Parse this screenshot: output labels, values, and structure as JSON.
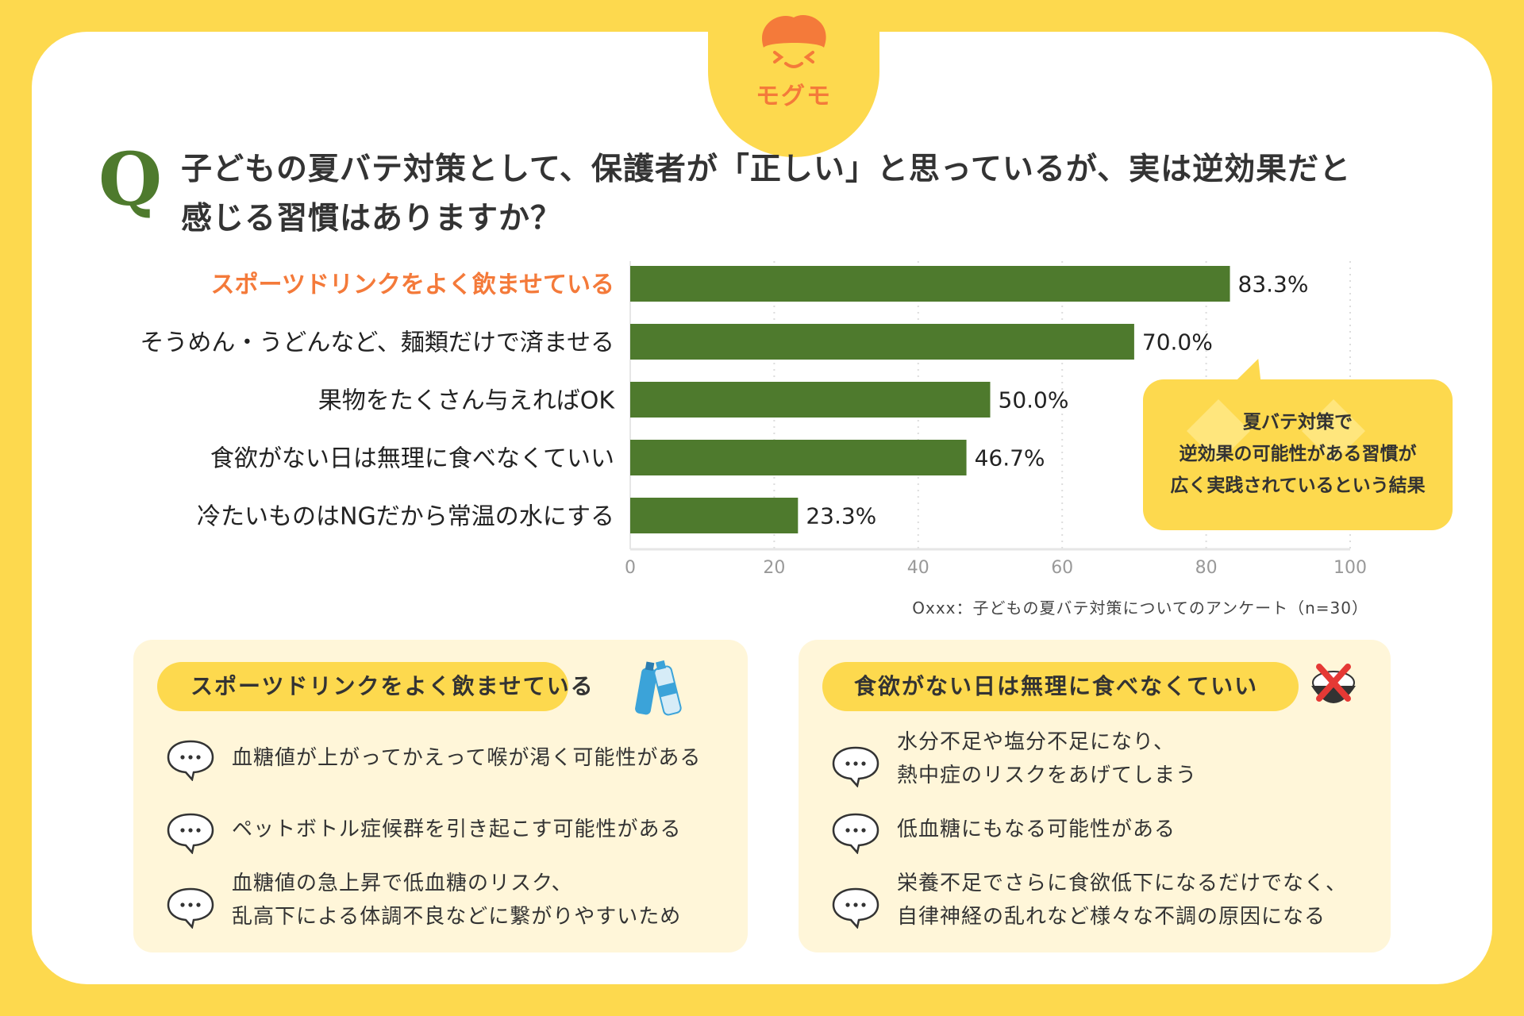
{
  "brand": {
    "name": "モグモ"
  },
  "question": {
    "mark": "Q",
    "line1": "子どもの夏バテ対策として、保護者が「正しい」と思っているが、実は逆効果だと",
    "line2": "感じる習慣はありますか？"
  },
  "chart_data": {
    "type": "bar",
    "orientation": "horizontal",
    "categories": [
      "スポーツドリンクをよく飲ませている",
      "そうめん・うどんなど、麺類だけで済ませる",
      "果物をたくさん与えればOK",
      "食欲がない日は無理に食べなくていい",
      "冷たいものはNGだから常温の水にする"
    ],
    "values": [
      83.3,
      70.0,
      50.0,
      46.7,
      23.3
    ],
    "value_labels": [
      "83.3%",
      "70.0%",
      "50.0%",
      "46.7%",
      "23.3%"
    ],
    "xlim": [
      0,
      100
    ],
    "xticks": [
      0,
      20,
      40,
      60,
      80,
      100
    ],
    "grid": true,
    "bar_color": "#4E7A2D",
    "highlight_category_index": 0,
    "highlight_color": "#F47A3A"
  },
  "source": "Oxxx：子どもの夏バテ対策についてのアンケート（n=30）",
  "callout": {
    "line1": "夏バテ対策で",
    "line2": "逆効果の可能性がある習慣が",
    "line3": "広く実践されているという結果"
  },
  "panels": [
    {
      "title": "スポーツドリンクをよく飲ませている",
      "icon": "sports-drink-bottles-icon",
      "items": [
        {
          "lines": [
            "血糖値が上がってかえって喉が渇く可能性がある"
          ]
        },
        {
          "lines": [
            "ペットボトル症候群を引き起こす可能性がある"
          ]
        },
        {
          "lines": [
            "血糖値の急上昇で低血糖のリスク、",
            "乱高下による体調不良などに繋がりやすいため"
          ]
        }
      ]
    },
    {
      "title": "食欲がない日は無理に食べなくていい",
      "icon": "rice-bowl-cross-icon",
      "items": [
        {
          "lines": [
            "水分不足や塩分不足になり、",
            "熱中症のリスクをあげてしまう"
          ]
        },
        {
          "lines": [
            "低血糖にもなる可能性がある"
          ]
        },
        {
          "lines": [
            "栄養不足でさらに食欲低下になるだけでなく、",
            "自律神経の乱れなど様々な不調の原因になる"
          ]
        }
      ]
    }
  ],
  "colors": {
    "background": "#FDD94E",
    "accent": "#F47A3A",
    "bar": "#4E7A2D",
    "panel": "#FFF6D9"
  }
}
